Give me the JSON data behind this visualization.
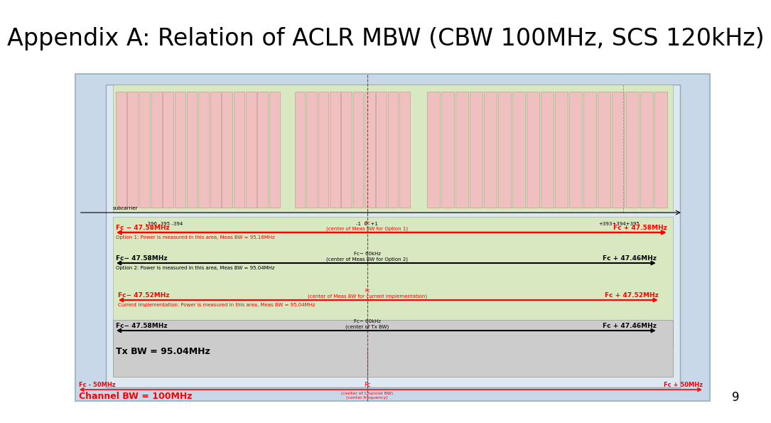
{
  "title": "Appendix A: Relation of ACLR MBW (CBW 100MHz, SCS 120kHz)",
  "title_fontsize": 24,
  "bg_color": "#ffffff",
  "outer_bg": "#c8d8e8",
  "inner_bg": "#dde8f0",
  "green_bg": "#d8e8c0",
  "pink_bar": "#f0c0c0",
  "pink_bar_edge": "#c09090",
  "gray_bg": "#cccccc",
  "page_number": "9",
  "subcarrier_label": "subcarrier",
  "sub_labels": [
    "-396 -395 -394",
    "-1  0  +1",
    "+393+394+395"
  ],
  "opt1_left": "Fc − 47.58MHz",
  "opt1_center": "Fc\n(center of Meas BW for Option 1)",
  "opt1_right": "Fc + 47.58MHz",
  "opt1_sub": "Option 1: Power is measured in this area, Meas BW = 95.16MHz",
  "opt2_left": "Fc− 47.58MHz",
  "opt2_center": "Fc− 60kHz\n(center of Meas BW for Option 2)",
  "opt2_right": "Fc + 47.46MHz",
  "opt2_sub": "Option 2: Power is measured in this area, Meas BW = 95.04MHz",
  "curr_left": "Fc− 47.52MHz",
  "curr_center": "Fc\n(center of Meas BW for current implementation)",
  "curr_right": "Fc + 47.52MHz",
  "curr_sub": "Current implementation: Power is measured in this area, Meas BW = 95.04MHz",
  "tx_left": "Fc− 47.58MHz",
  "tx_center": "Fc− 60kHz\n(center of Tx BW)",
  "tx_right": "Fc + 47.46MHz",
  "tx_sub": "Tx BW = 95.04MHz",
  "ch_left": "Fc - 50MHz",
  "ch_center": "Fc",
  "ch_center2": "(center of Channel BW)\n(center frequency)",
  "ch_right": "Fc + 50MHz",
  "ch_sub": "Channel BW = 100MHz"
}
